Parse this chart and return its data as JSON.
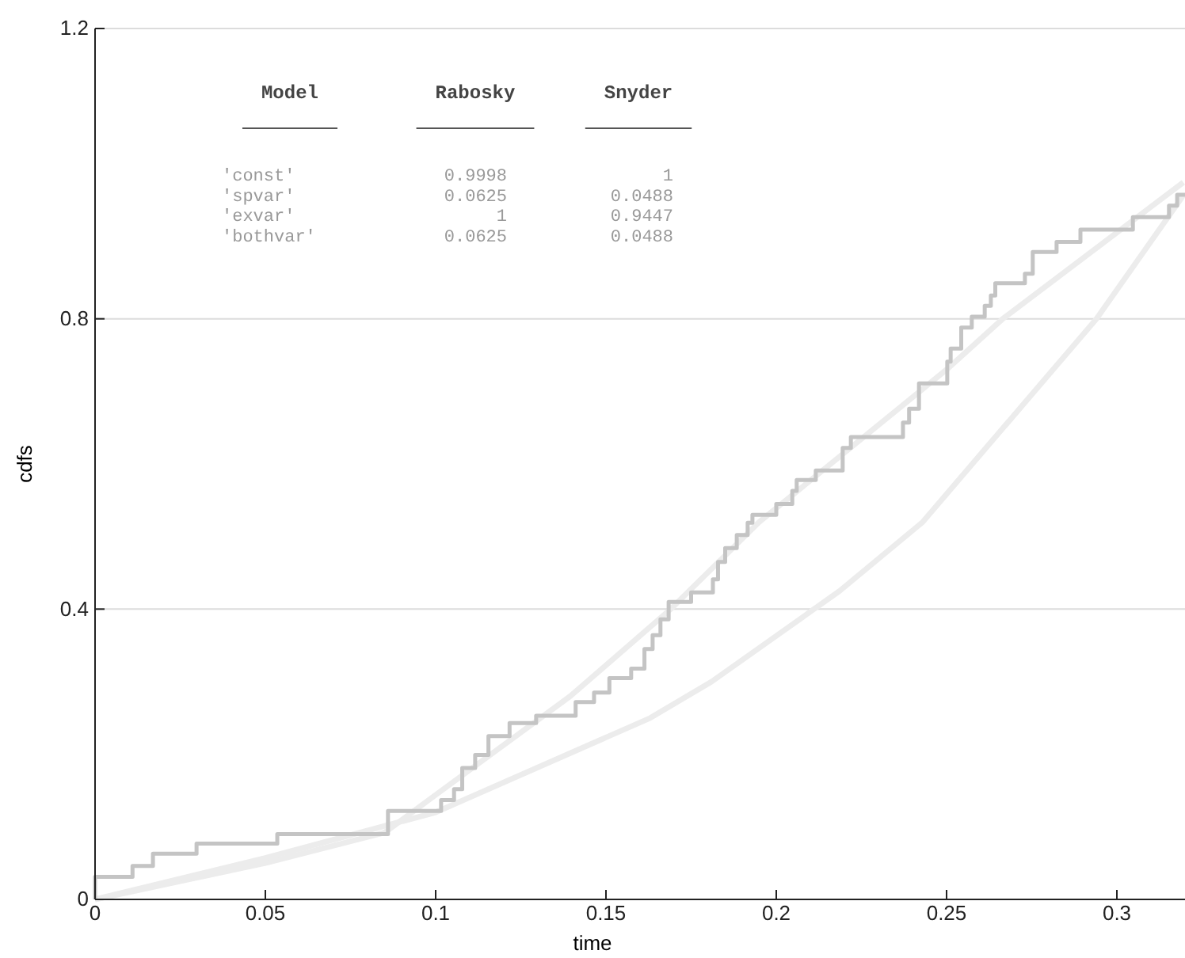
{
  "chart_data": {
    "type": "line",
    "xlabel": "time",
    "ylabel": "cdfs",
    "xlim": [
      0,
      0.32
    ],
    "ylim": [
      0,
      1.2
    ],
    "xticks": [
      0,
      0.05,
      0.1,
      0.15,
      0.2,
      0.25,
      0.3
    ],
    "yticks": [
      0,
      0.4,
      0.8,
      1.2
    ],
    "grid": "y",
    "marker": "none",
    "line_style": "solid",
    "series": [
      {
        "color": "#ececec",
        "x": [
          0,
          0.05,
          0.085,
          0.1,
          0.1395,
          0.169,
          0.195,
          0.25,
          0.2665,
          0.3195
        ],
        "values": [
          0,
          0.05,
          0.092,
          0.144,
          0.28,
          0.4,
          0.52,
          0.73,
          0.8,
          0.988
        ]
      },
      {
        "color": "#ececec",
        "x": [
          0,
          0.05,
          0.1,
          0.163,
          0.181,
          0.2186,
          0.243,
          0.294,
          0.3195
        ],
        "values": [
          0,
          0.057,
          0.12,
          0.25,
          0.3,
          0.425,
          0.52,
          0.8,
          0.97
        ]
      },
      {
        "type": "step",
        "color": "#c4c4c4",
        "x": [
          0,
          0,
          0.011,
          0.017,
          0.0298,
          0.0535,
          0.086,
          0.1016,
          0.1054,
          0.1078,
          0.1116,
          0.1155,
          0.1217,
          0.1295,
          0.1411,
          0.1465,
          0.151,
          0.1574,
          0.1613,
          0.1637,
          0.166,
          0.1684,
          0.175,
          0.1814,
          0.1829,
          0.185,
          0.1884,
          0.1916,
          0.193,
          0.2,
          0.2047,
          0.206,
          0.2116,
          0.2195,
          0.2219,
          0.2372,
          0.239,
          0.2419,
          0.2502,
          0.2512,
          0.2543,
          0.2574,
          0.2612,
          0.263,
          0.2643,
          0.273,
          0.2753,
          0.2823,
          0.2893,
          0.3047,
          0.3153,
          0.3177,
          0.32
        ],
        "values": [
          0,
          0.031,
          0.046,
          0.063,
          0.077,
          0.09,
          0.122,
          0.137,
          0.152,
          0.181,
          0.199,
          0.225,
          0.243,
          0.253,
          0.272,
          0.285,
          0.305,
          0.318,
          0.345,
          0.364,
          0.386,
          0.41,
          0.423,
          0.441,
          0.465,
          0.484,
          0.502,
          0.519,
          0.53,
          0.545,
          0.563,
          0.578,
          0.591,
          0.622,
          0.637,
          0.657,
          0.676,
          0.711,
          0.741,
          0.759,
          0.788,
          0.803,
          0.818,
          0.832,
          0.849,
          0.862,
          0.892,
          0.906,
          0.923,
          0.94,
          0.956,
          0.971,
          0.971
        ]
      }
    ],
    "annotations": [
      "Model",
      "Rabosky",
      "Snyder",
      "'const'",
      "0.9998",
      "1",
      "'spvar'",
      "0.0625",
      "0.0488",
      "'exvar'",
      "1",
      "0.9447",
      "'bothvar'",
      "0.0625",
      "0.0488"
    ]
  }
}
